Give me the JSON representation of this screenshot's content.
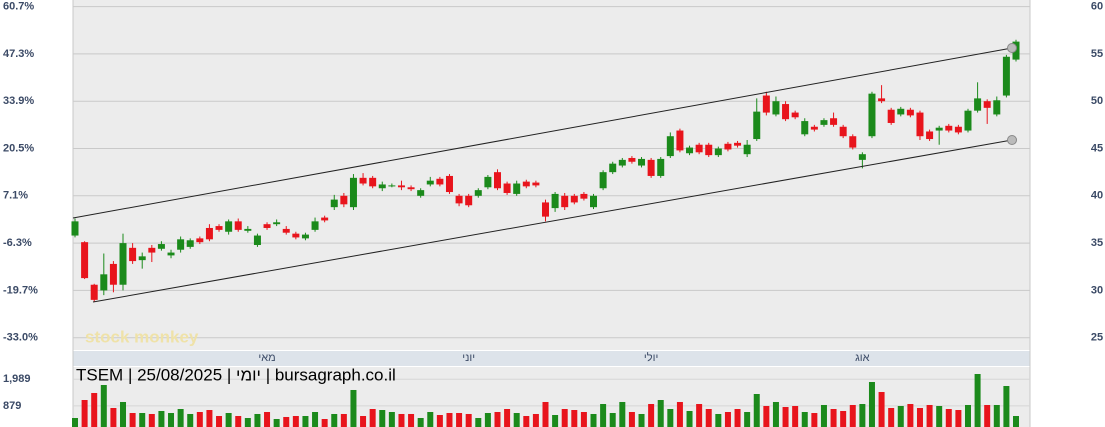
{
  "chart_data": {
    "type": "candlestick",
    "title": "TSEM | 25/08/2025 | יומי | bursagraph.co.il",
    "watermark": "stock monkey",
    "categories": [
      null,
      null,
      null,
      null,
      null,
      null,
      null,
      null,
      null,
      null,
      null,
      null,
      null,
      null,
      null,
      null,
      null,
      null,
      null,
      null,
      "מאי",
      null,
      null,
      null,
      null,
      null,
      null,
      null,
      null,
      null,
      null,
      null,
      null,
      null,
      null,
      null,
      null,
      null,
      null,
      null,
      null,
      "יוני",
      null,
      null,
      null,
      null,
      null,
      null,
      null,
      null,
      null,
      null,
      null,
      null,
      null,
      null,
      null,
      null,
      null,
      null,
      "יולי",
      null,
      null,
      null,
      null,
      null,
      null,
      null,
      null,
      null,
      null,
      null,
      null,
      null,
      null,
      null,
      null,
      null,
      null,
      null,
      null,
      null,
      "אוג",
      null,
      null,
      null,
      null,
      null,
      null,
      null,
      null,
      null,
      null,
      null,
      null,
      null,
      null,
      null,
      null
    ],
    "open": [
      35.8,
      35.1,
      30.6,
      30,
      32.8,
      30.6,
      34.5,
      33.2,
      34.5,
      34.4,
      33.7,
      34.3,
      34.6,
      35.5,
      36.6,
      36.8,
      36.2,
      37.3,
      36.3,
      34.8,
      37,
      37,
      36.5,
      36,
      35.5,
      36.4,
      37.7,
      38.8,
      40,
      38.8,
      41.9,
      41.9,
      40.8,
      41,
      41.1,
      40.9,
      40,
      41.2,
      41.8,
      42.1,
      40,
      40,
      40,
      40.9,
      42.5,
      41.3,
      40.2,
      41.5,
      41.4,
      39.3,
      38.7,
      40,
      40,
      40.2,
      38.8,
      40.8,
      42.5,
      43.2,
      44,
      43.2,
      43.8,
      42.1,
      44.2,
      46.9,
      44.5,
      45.4,
      45.4,
      44.3,
      45.5,
      45.6,
      44.4,
      46,
      50.6,
      48.6,
      49.7,
      48.8,
      46.5,
      47.3,
      47.5,
      48.2,
      47.3,
      46.3,
      43.8,
      46.3,
      50.3,
      49.1,
      48.6,
      49.1,
      48.8,
      46.8,
      46.9,
      47.4,
      47.3,
      46.9,
      49,
      50,
      48.6,
      50.6,
      54.4
    ],
    "high": [
      37.6,
      35.2,
      30.7,
      33.9,
      33.1,
      36,
      35,
      34,
      34.8,
      35.2,
      34.3,
      35.7,
      35.5,
      35.7,
      37,
      37,
      37.5,
      37.6,
      36.8,
      36,
      37.2,
      37.5,
      36.8,
      36.2,
      36.1,
      37.7,
      37.9,
      40.1,
      40.3,
      42.3,
      42.4,
      42.1,
      41.5,
      41.3,
      41.6,
      41.1,
      40.8,
      42,
      42,
      42.3,
      40.2,
      40.2,
      40.8,
      42.2,
      42.8,
      41.5,
      41.6,
      41.7,
      41.6,
      39.6,
      40.4,
      40.3,
      40.2,
      40.4,
      40.2,
      42.7,
      43.6,
      44,
      44.2,
      44.1,
      44,
      44.1,
      46.7,
      47.1,
      45.3,
      45.6,
      45.6,
      45.2,
      45.7,
      45.8,
      45.9,
      50.3,
      51,
      50.5,
      50,
      49,
      48.2,
      47.5,
      48.2,
      48.8,
      47.5,
      46.5,
      44.6,
      51,
      51.7,
      49.3,
      49.4,
      49.3,
      49,
      47,
      47.4,
      47.6,
      47.5,
      49.2,
      52,
      50.2,
      50.5,
      54.9,
      56.5
    ],
    "low": [
      35.6,
      31.2,
      28.8,
      29.5,
      29.8,
      30,
      32.8,
      32.3,
      33,
      34.2,
      33.4,
      34,
      34.4,
      34.9,
      35.2,
      36.2,
      35.9,
      36.2,
      36.1,
      34.6,
      36.4,
      36.8,
      35.9,
      35.4,
      35.3,
      36.2,
      37.2,
      38.5,
      38.8,
      38.5,
      41.1,
      40.8,
      40.5,
      40.9,
      40.6,
      40.5,
      39.8,
      41,
      41,
      40.2,
      38.9,
      38.8,
      39.8,
      40.7,
      40.6,
      40.1,
      40,
      40.8,
      40.9,
      37.3,
      38.3,
      38.5,
      39.1,
      39.5,
      38.6,
      40.6,
      42.3,
      43,
      43.4,
      43,
      41.9,
      41.9,
      44,
      44.6,
      44.3,
      44.4,
      44.1,
      44.1,
      44.7,
      45.1,
      44.1,
      45.8,
      48.5,
      48.4,
      47.9,
      48.1,
      46.3,
      46.8,
      47.3,
      47.3,
      46.1,
      44.9,
      42.9,
      46.1,
      49.8,
      47.5,
      48.4,
      48.3,
      45.9,
      45.8,
      45.4,
      46.7,
      46.5,
      46.7,
      48.8,
      47.6,
      48.4,
      50.4,
      54.2
    ],
    "close": [
      37.3,
      31.3,
      29,
      31.7,
      30.6,
      35,
      33.1,
      33.6,
      34,
      34.9,
      34,
      35.4,
      35.3,
      35.1,
      35.4,
      36.4,
      37.3,
      36.4,
      36.5,
      35.8,
      36.6,
      37.2,
      36.1,
      35.6,
      35.9,
      37.3,
      37.4,
      39.6,
      39.1,
      41.9,
      41.3,
      41,
      41.2,
      41.1,
      40.9,
      40.7,
      40.6,
      41.6,
      41.2,
      40.4,
      39.2,
      39,
      40.6,
      42,
      40.8,
      40.3,
      41.3,
      41,
      41.1,
      37.8,
      40.2,
      38.8,
      39.3,
      39.7,
      40,
      42.5,
      43.4,
      43.8,
      43.6,
      43.9,
      42.1,
      43.9,
      46.3,
      44.8,
      45.1,
      44.6,
      44.3,
      45,
      44.9,
      45.3,
      45.4,
      48.9,
      48.8,
      50,
      48.1,
      48.3,
      47.9,
      47,
      48,
      47.5,
      46.3,
      45.1,
      44.4,
      50.8,
      50,
      47.7,
      49.2,
      48.5,
      46.3,
      46,
      47.2,
      46.9,
      46.7,
      49,
      50.3,
      49.3,
      50.1,
      54.7,
      56.3
    ],
    "volume": [
      375,
      1125,
      1417,
      1750,
      792,
      1042,
      583,
      583,
      542,
      667,
      583,
      750,
      542,
      625,
      708,
      458,
      583,
      458,
      375,
      542,
      625,
      333,
      417,
      458,
      458,
      625,
      333,
      542,
      542,
      1542,
      458,
      750,
      708,
      625,
      542,
      542,
      375,
      625,
      500,
      583,
      583,
      542,
      375,
      583,
      625,
      750,
      583,
      458,
      542,
      1042,
      500,
      750,
      708,
      625,
      542,
      958,
      583,
      1042,
      625,
      542,
      958,
      1125,
      750,
      1042,
      667,
      958,
      750,
      542,
      625,
      750,
      625,
      1375,
      875,
      1042,
      833,
      875,
      625,
      583,
      917,
      750,
      667,
      917,
      958,
      1875,
      1458,
      792,
      875,
      958,
      792,
      917,
      875,
      750,
      708,
      917,
      2208,
      917,
      917,
      1708,
      458
    ],
    "up_color": "#1b8a1b",
    "down_color": "#e8141c",
    "ylim": [
      23.7,
      60.7
    ],
    "yticks": [
      60,
      55,
      50,
      45,
      40,
      35,
      30,
      25
    ],
    "y2lim": [
      23.7,
      60.7
    ],
    "y2ticks": [
      {
        "value": 60,
        "label": "60.7%"
      },
      {
        "value": 55,
        "label": "47.3%"
      },
      {
        "value": 50,
        "label": "33.9%"
      },
      {
        "value": 45,
        "label": "20.5%"
      },
      {
        "value": 40,
        "label": "7.1%"
      },
      {
        "value": 35,
        "label": "-6.3%"
      },
      {
        "value": 30,
        "label": "-19.7%"
      },
      {
        "value": 25,
        "label": "-33.0%"
      }
    ],
    "volume_lim": [
      0,
      2500
    ],
    "volume_ticks": [
      {
        "value": 1989,
        "label": "1,989"
      },
      879
    ],
    "grid": true
  }
}
